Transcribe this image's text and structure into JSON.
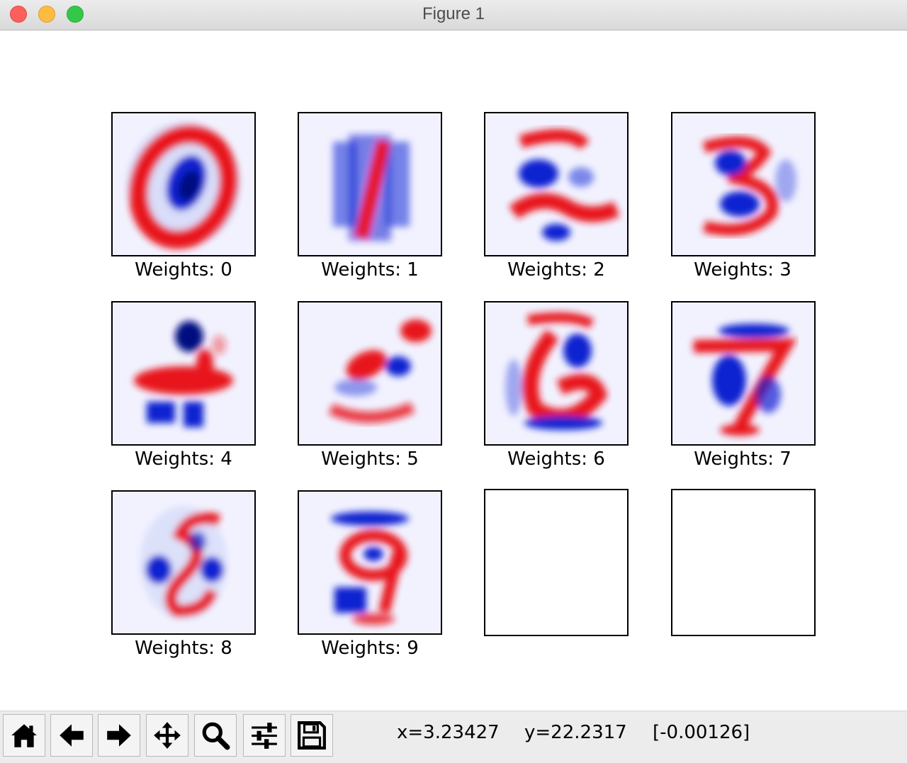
{
  "window": {
    "title": "Figure 1"
  },
  "toolbar": {
    "buttons": [
      {
        "name": "home-icon",
        "label": "Home"
      },
      {
        "name": "back-arrow-icon",
        "label": "Back"
      },
      {
        "name": "forward-arrow-icon",
        "label": "Forward"
      },
      {
        "name": "pan-move-icon",
        "label": "Pan"
      },
      {
        "name": "zoom-magnifier-icon",
        "label": "Zoom"
      },
      {
        "name": "subplots-sliders-icon",
        "label": "Subplots"
      },
      {
        "name": "save-floppy-icon",
        "label": "Save"
      }
    ],
    "x_readout": "x=3.23427",
    "y_readout": "y=22.2317",
    "value_readout": "[-0.00126]"
  },
  "colors": {
    "positive": "#e8141c",
    "negative": "#1020d0",
    "neutral": "#f2f2ff"
  },
  "subplots": [
    {
      "label": "Weights: 0",
      "digit": "0"
    },
    {
      "label": "Weights: 1",
      "digit": "1"
    },
    {
      "label": "Weights: 2",
      "digit": "2"
    },
    {
      "label": "Weights: 3",
      "digit": "3"
    },
    {
      "label": "Weights: 4",
      "digit": "4"
    },
    {
      "label": "Weights: 5",
      "digit": "5"
    },
    {
      "label": "Weights: 6",
      "digit": "6"
    },
    {
      "label": "Weights: 7",
      "digit": "7"
    },
    {
      "label": "Weights: 8",
      "digit": "8"
    },
    {
      "label": "Weights: 9",
      "digit": "9"
    },
    {
      "label": "",
      "digit": ""
    },
    {
      "label": "",
      "digit": ""
    }
  ]
}
